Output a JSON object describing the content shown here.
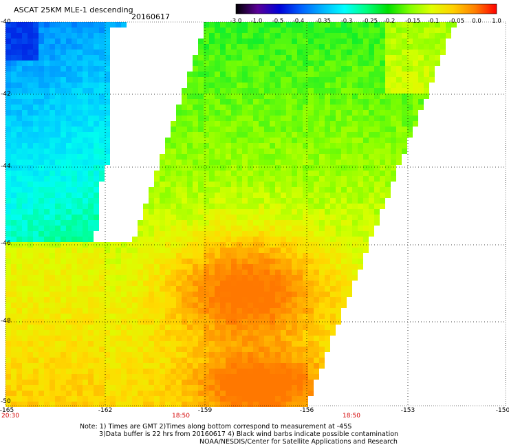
{
  "header": {
    "title": "ASCAT 25KM MLE-1 descending",
    "date": "20160617"
  },
  "colorbar": {
    "labels": [
      "-3.0",
      "-1.0",
      "-0.5",
      "-0.4",
      "-0.35",
      "-0.3",
      "-0.25",
      "-0.2",
      "-0.15",
      "-0.1",
      "-0.05",
      "0.0",
      "1.0"
    ]
  },
  "axes": {
    "lat_labels": [
      "-40",
      "-42",
      "-44",
      "-46",
      "-48",
      "-50"
    ],
    "lon_labels": [
      "-165",
      "-162",
      "-159",
      "-156",
      "-153",
      "-150"
    ],
    "time_labels": [
      "20:30",
      "18:50",
      "18:50"
    ]
  },
  "notes": {
    "line1": "Note: 1) Times are GMT 2)Times along bottom correspond to measurement at -45S",
    "line2": "3)Data buffer is 22 hrs from 20160617 4) Black wind barbs indicate possible contamination",
    "line3": "NOAA/NESDIS/Center for Satellite Applications and Research"
  },
  "colors": {
    "scale": [
      "#000000",
      "#5a0098",
      "#0000d8",
      "#0060ff",
      "#00b4ff",
      "#00ffff",
      "#00ff80",
      "#00e000",
      "#80ff00",
      "#e0ff00",
      "#ffd000",
      "#ff8000",
      "#ff0000"
    ]
  }
}
